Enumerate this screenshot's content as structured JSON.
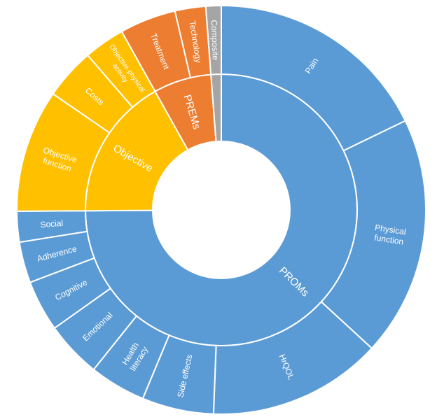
{
  "chart_data": {
    "type": "sunburst",
    "title": "",
    "colors": {
      "PROMs": "#5B9BD5",
      "Objective": "#FFC000",
      "PREMs": "#ED7D31",
      "Composite": "#A5A5A5"
    },
    "rings": [
      {
        "name": "PROMs",
        "color": "#5B9BD5",
        "children": [
          {
            "name": "Pain",
            "value": 44
          },
          {
            "name": "Physical function",
            "value": 47
          },
          {
            "name": "HrQOL",
            "value": 34
          },
          {
            "name": "Side effects",
            "value": 14
          },
          {
            "name": "Health literacy",
            "value": 11
          },
          {
            "name": "Emotional",
            "value": 11
          },
          {
            "name": "Cognitive",
            "value": 10
          },
          {
            "name": "Adherence",
            "value": 8
          },
          {
            "name": "Social",
            "value": 6
          }
        ]
      },
      {
        "name": "Objective",
        "color": "#FFC000",
        "children": [
          {
            "name": "Objective function",
            "value": 24
          },
          {
            "name": "Costs",
            "value": 10
          },
          {
            "name": "Objective physical activity",
            "value": 8
          }
        ]
      },
      {
        "name": "PREMs",
        "color": "#ED7D31",
        "children": [
          {
            "name": "Treatment",
            "value": 11
          },
          {
            "name": "Technology",
            "value": 6
          }
        ]
      },
      {
        "name": "Composite",
        "color": "#A5A5A5",
        "children": [
          {
            "name": "Composite",
            "value": 3
          }
        ]
      }
    ]
  }
}
